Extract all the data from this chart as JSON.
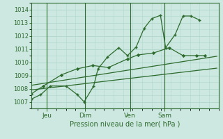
{
  "bg_color": "#cce8e0",
  "grid_color": "#b0d8ce",
  "line_color": "#2d6a2d",
  "marker_color": "#2d6a2d",
  "xlabel": "Pression niveau de la mer( hPa )",
  "xlabel_color": "#2d6a2d",
  "tick_color": "#2d6a2d",
  "ylim": [
    1006.5,
    1014.5
  ],
  "yticks": [
    1007,
    1008,
    1009,
    1010,
    1011,
    1012,
    1013,
    1014
  ],
  "xlim": [
    0.0,
    1.08
  ],
  "day_positions": [
    0.09,
    0.31,
    0.57,
    0.77
  ],
  "day_labels": [
    "Jeu",
    "Dim",
    "Ven",
    "Sam"
  ],
  "series1_x": [
    0.0,
    0.055,
    0.11,
    0.2,
    0.265,
    0.305,
    0.36,
    0.385,
    0.44,
    0.505,
    0.555,
    0.605,
    0.65,
    0.695,
    0.745,
    0.775,
    0.83,
    0.875,
    0.92,
    0.97
  ],
  "series1_y": [
    1007.2,
    1007.55,
    1008.2,
    1008.2,
    1007.55,
    1007.0,
    1008.2,
    1009.5,
    1010.4,
    1011.1,
    1010.5,
    1011.15,
    1012.55,
    1013.3,
    1013.55,
    1011.1,
    1012.1,
    1013.5,
    1013.5,
    1013.2
  ],
  "series2_x": [
    0.0,
    0.07,
    0.175,
    0.265,
    0.355,
    0.445,
    0.555,
    0.615,
    0.705,
    0.795,
    0.875,
    0.955,
    1.0
  ],
  "series2_y": [
    1007.6,
    1008.2,
    1009.05,
    1009.5,
    1009.75,
    1009.6,
    1010.25,
    1010.55,
    1010.7,
    1011.1,
    1010.5,
    1010.5,
    1010.5
  ],
  "series3_x": [
    0.0,
    1.07
  ],
  "series3_y": [
    1008.25,
    1010.45
  ],
  "series4_x": [
    0.0,
    1.07
  ],
  "series4_y": [
    1007.9,
    1009.55
  ],
  "vline_positions": [
    0.09,
    0.31,
    0.57,
    0.77
  ]
}
